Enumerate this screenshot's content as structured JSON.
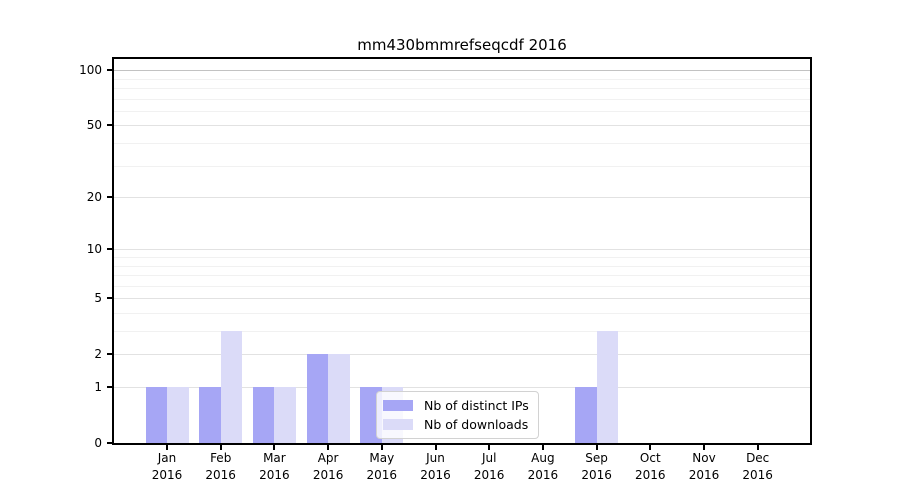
{
  "title": "mm430bmmrefseqcdf 2016",
  "legend": {
    "items": [
      {
        "label": "Nb of distinct IPs",
        "color": "#a6a6f5"
      },
      {
        "label": "Nb of downloads",
        "color": "#dbdbf8"
      }
    ]
  },
  "chart_data": {
    "type": "bar",
    "title": "mm430bmmrefseqcdf 2016",
    "categories": [
      "Jan 2016",
      "Feb 2016",
      "Mar 2016",
      "Apr 2016",
      "May 2016",
      "Jun 2016",
      "Jul 2016",
      "Aug 2016",
      "Sep 2016",
      "Oct 2016",
      "Nov 2016",
      "Dec 2016"
    ],
    "x_tick_months": [
      "Jan",
      "Feb",
      "Mar",
      "Apr",
      "May",
      "Jun",
      "Jul",
      "Aug",
      "Sep",
      "Oct",
      "Nov",
      "Dec"
    ],
    "x_tick_year": "2016",
    "series": [
      {
        "name": "Nb of distinct IPs",
        "color": "#a6a6f5",
        "values": [
          1,
          1,
          1,
          2,
          1,
          0,
          0,
          0,
          1,
          0,
          0,
          0
        ]
      },
      {
        "name": "Nb of downloads",
        "color": "#dbdbf8",
        "values": [
          1,
          3,
          1,
          2,
          1,
          0,
          0,
          0,
          3,
          0,
          0,
          0
        ]
      }
    ],
    "xlabel": "",
    "ylabel": "",
    "y_scale": "log10(1+v)",
    "y_major_ticks": [
      100,
      50,
      20,
      10,
      5,
      2,
      1,
      0
    ],
    "y_minor_gridlines": [
      3,
      4,
      6,
      7,
      8,
      9,
      30,
      40,
      60,
      70,
      80,
      90
    ],
    "ylim": [
      0,
      115
    ],
    "grid": true,
    "legend_position": "inside lower-center"
  },
  "colors": {
    "bar_distinct_ips": "#a6a6f5",
    "bar_downloads": "#dbdbf8",
    "grid_minor": "#f1f1f1",
    "grid_major": "#e2e2e2",
    "grid_top_line": "#c2c2c2",
    "axis": "#000000",
    "legend_border": "#d2d2d2"
  }
}
